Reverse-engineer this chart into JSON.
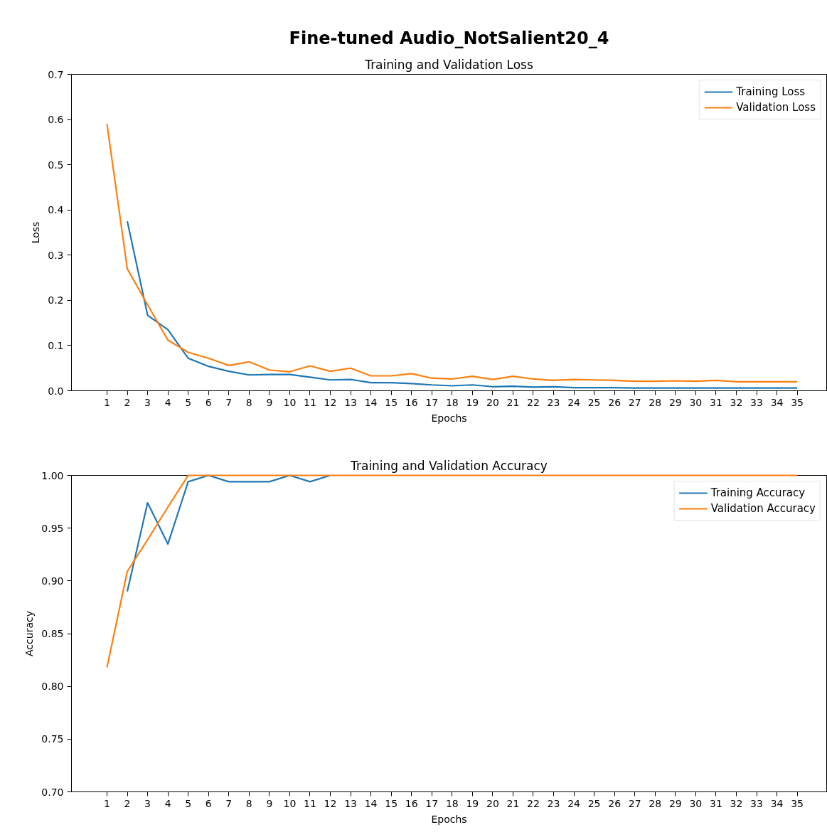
{
  "chart_data": [
    {
      "type": "line",
      "title": "Fine-tuned Audio_NotSalient20_4",
      "subtitle": "Training and Validation Loss",
      "xlabel": "Epochs",
      "ylabel": "Loss",
      "x": [
        1,
        2,
        3,
        4,
        5,
        6,
        7,
        8,
        9,
        10,
        11,
        12,
        13,
        14,
        15,
        16,
        17,
        18,
        19,
        20,
        21,
        22,
        23,
        24,
        25,
        26,
        27,
        28,
        29,
        30,
        31,
        32,
        33,
        34,
        35
      ],
      "series": [
        {
          "name": "Training Loss",
          "color": "#1f77b4",
          "values": [
            null,
            0.375,
            0.167,
            0.135,
            0.072,
            0.054,
            0.043,
            0.035,
            0.036,
            0.036,
            0.03,
            0.024,
            0.025,
            0.018,
            0.018,
            0.016,
            0.013,
            0.011,
            0.013,
            0.009,
            0.01,
            0.008,
            0.009,
            0.007,
            0.007,
            0.007,
            0.006,
            0.006,
            0.006,
            0.006,
            0.006,
            0.006,
            0.006,
            0.006,
            0.006
          ]
        },
        {
          "name": "Validation Loss",
          "color": "#ff7f0e",
          "values": [
            0.59,
            0.27,
            0.19,
            0.112,
            0.085,
            0.072,
            0.056,
            0.064,
            0.046,
            0.042,
            0.055,
            0.043,
            0.05,
            0.033,
            0.033,
            0.038,
            0.028,
            0.026,
            0.032,
            0.025,
            0.032,
            0.026,
            0.023,
            0.025,
            0.024,
            0.023,
            0.021,
            0.021,
            0.022,
            0.021,
            0.023,
            0.02,
            0.02,
            0.02,
            0.02
          ]
        }
      ],
      "xlim": [
        -0.75,
        36.45
      ],
      "xticks": [
        1,
        2,
        3,
        4,
        5,
        6,
        7,
        8,
        9,
        10,
        11,
        12,
        13,
        14,
        15,
        16,
        17,
        18,
        19,
        20,
        21,
        22,
        23,
        24,
        25,
        26,
        27,
        28,
        29,
        30,
        31,
        32,
        33,
        34,
        35
      ],
      "ylim": [
        0,
        0.7
      ],
      "yticks": [
        {
          "value": 0,
          "label": "0.0"
        },
        0.1,
        0.2,
        0.3,
        0.4,
        0.5,
        0.6,
        0.7
      ],
      "grid": false,
      "legend": "top right",
      "marker": "none",
      "line_style": "solid"
    },
    {
      "type": "line",
      "title": "Training and Validation Accuracy",
      "xlabel": "Epochs",
      "ylabel": "Accuracy",
      "x": [
        1,
        2,
        3,
        4,
        5,
        6,
        7,
        8,
        9,
        10,
        11,
        12,
        13,
        14,
        15,
        16,
        17,
        18,
        19,
        20,
        21,
        22,
        23,
        24,
        25,
        26,
        27,
        28,
        29,
        30,
        31,
        32,
        33,
        34,
        35
      ],
      "series": [
        {
          "name": "Training Accuracy",
          "color": "#1f77b4",
          "values": [
            null,
            0.89,
            0.974,
            0.935,
            0.994,
            1.0,
            0.994,
            0.994,
            0.994,
            1.0,
            0.994,
            1.0,
            null,
            null,
            null,
            null,
            null,
            null,
            null,
            null,
            null,
            null,
            null,
            null,
            null,
            null,
            null,
            null,
            null,
            null,
            null,
            null,
            null,
            null,
            null
          ]
        },
        {
          "name": "Validation Accuracy",
          "color": "#ff7f0e",
          "values": [
            0.818,
            0.909,
            0.939,
            0.97,
            1.0,
            1.0,
            1.0,
            1.0,
            1.0,
            1.0,
            1.0,
            1.0,
            1.0,
            1.0,
            1.0,
            1.0,
            1.0,
            1.0,
            1.0,
            1.0,
            1.0,
            1.0,
            1.0,
            1.0,
            1.0,
            1.0,
            1.0,
            1.0,
            1.0,
            1.0,
            1.0,
            1.0,
            1.0,
            1.0,
            1.0
          ]
        }
      ],
      "xlim": [
        -0.75,
        36.45
      ],
      "xticks": [
        1,
        2,
        3,
        4,
        5,
        6,
        7,
        8,
        9,
        10,
        11,
        12,
        13,
        14,
        15,
        16,
        17,
        18,
        19,
        20,
        21,
        22,
        23,
        24,
        25,
        26,
        27,
        28,
        29,
        30,
        31,
        32,
        33,
        34,
        35
      ],
      "ylim": [
        0.7,
        1.0
      ],
      "yticks": [
        {
          "value": 0.7,
          "label": "0.70"
        },
        0.75,
        {
          "value": 0.8,
          "label": "0.80"
        },
        0.85,
        {
          "value": 0.9,
          "label": "0.90"
        },
        0.95,
        {
          "value": 1.0,
          "label": "1.00"
        }
      ],
      "grid": false,
      "legend": "top right",
      "marker": "none",
      "line_style": "solid"
    }
  ]
}
